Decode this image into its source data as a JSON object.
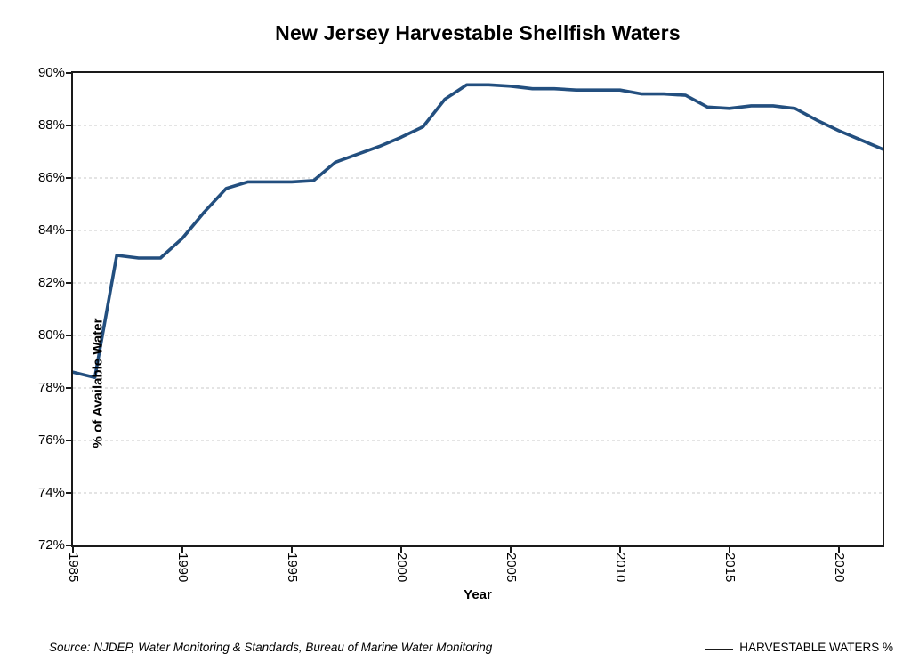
{
  "title": "New Jersey Harvestable Shellfish Waters",
  "axes": {
    "x_label": "Year",
    "y_label": "% of Available Water"
  },
  "footer": {
    "source": "Source: NJDEP, Water Monitoring & Standards, Bureau of Marine Water Monitoring",
    "legend_label": "HARVESTABLE WATERS %"
  },
  "chart_data": {
    "type": "line",
    "title": "New Jersey Harvestable Shellfish Waters",
    "xlabel": "Year",
    "ylabel": "% of Available Water",
    "xlim": [
      1985,
      2022
    ],
    "ylim": [
      72,
      90
    ],
    "grid": "horizontal-dashed",
    "legend_position": "bottom-right",
    "line_color": "#234F7F",
    "x_ticks": [
      1985,
      1990,
      1995,
      2000,
      2005,
      2010,
      2015,
      2020
    ],
    "y_ticks": [
      72,
      74,
      76,
      78,
      80,
      82,
      84,
      86,
      88,
      90
    ],
    "y_tick_suffix": "%",
    "series": [
      {
        "name": "HARVESTABLE WATERS %",
        "x": [
          1985,
          1986,
          1987,
          1988,
          1989,
          1990,
          1991,
          1992,
          1993,
          1994,
          1995,
          1996,
          1997,
          1998,
          1999,
          2000,
          2001,
          2002,
          2003,
          2004,
          2005,
          2006,
          2007,
          2008,
          2009,
          2010,
          2011,
          2012,
          2013,
          2014,
          2015,
          2016,
          2017,
          2018,
          2019,
          2020,
          2021,
          2022
        ],
        "values": [
          78.6,
          78.4,
          83.05,
          82.95,
          82.95,
          83.7,
          84.7,
          85.6,
          85.85,
          85.85,
          85.85,
          85.9,
          86.6,
          86.9,
          87.2,
          87.55,
          87.95,
          89.0,
          89.55,
          89.55,
          89.5,
          89.4,
          89.4,
          89.35,
          89.35,
          89.35,
          89.2,
          89.2,
          89.15,
          88.7,
          88.65,
          88.75,
          88.75,
          88.65,
          88.2,
          87.8,
          87.45,
          87.1
        ]
      }
    ]
  }
}
